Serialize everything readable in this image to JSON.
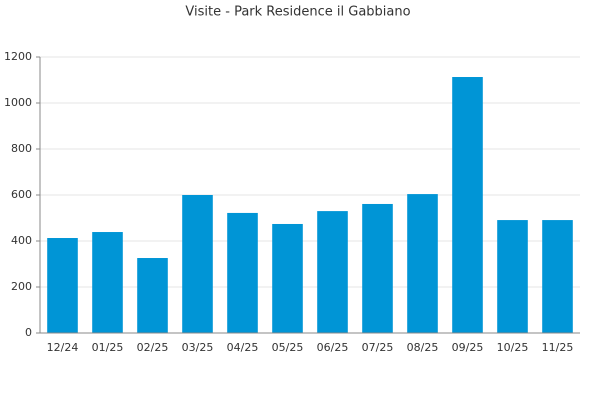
{
  "chart_data": {
    "type": "bar",
    "title": "Visite - Park Residence il Gabbiano",
    "categories": [
      "12/24",
      "01/25",
      "02/25",
      "03/25",
      "04/25",
      "05/25",
      "06/25",
      "07/25",
      "08/25",
      "09/25",
      "10/25",
      "11/25"
    ],
    "values": [
      413,
      439,
      326,
      600,
      522,
      474,
      530,
      561,
      604,
      1113,
      491,
      491
    ],
    "color": "#0095d6",
    "ylim": [
      0,
      1200
    ],
    "yticks": [
      0,
      200,
      400,
      600,
      800,
      1000,
      1200
    ],
    "grid": true
  }
}
